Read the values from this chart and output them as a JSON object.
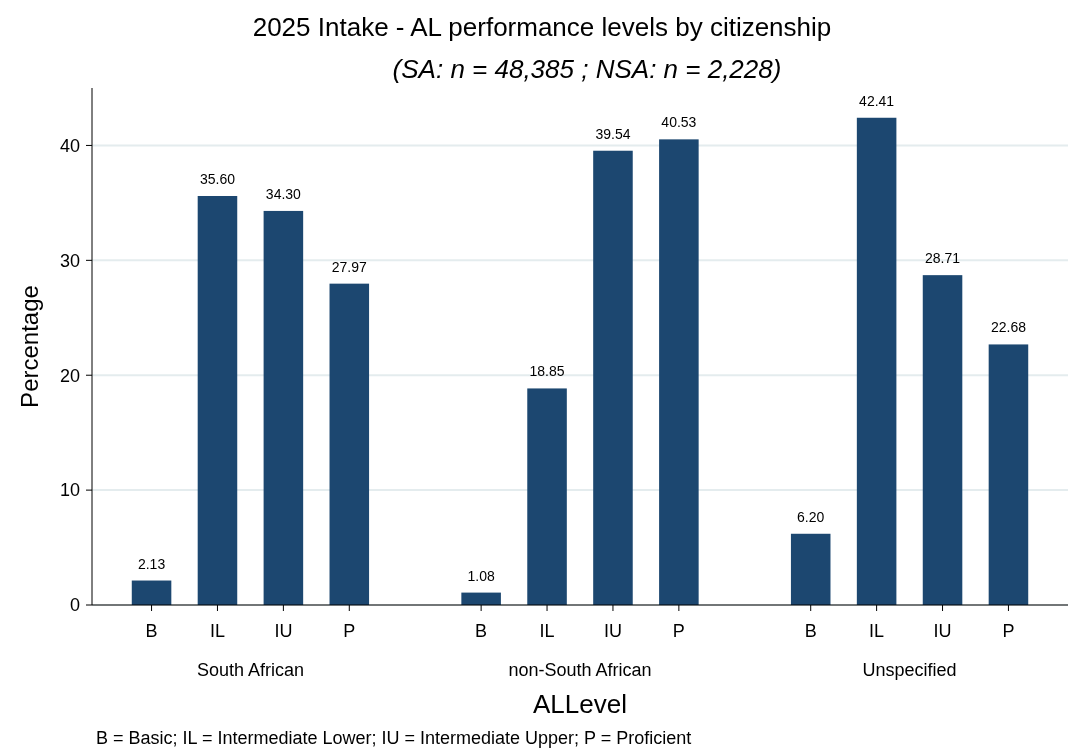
{
  "chart_data": {
    "type": "bar",
    "title": "2025 Intake - AL performance levels by citizenship",
    "subtitle": "(SA: n = 48,385 ; NSA: n = 2,228)",
    "xlabel": "ALLevel",
    "ylabel": "Percentage",
    "categories": [
      "B",
      "IL",
      "IU",
      "P",
      null,
      "B",
      "IL",
      "IU",
      "P",
      null,
      "B",
      "IL",
      "IU",
      "P"
    ],
    "values": [
      2.13,
      35.6,
      34.3,
      27.97,
      null,
      1.08,
      18.85,
      39.54,
      40.53,
      null,
      6.2,
      42.41,
      28.71,
      22.68
    ],
    "value_labels": [
      "2.13",
      "35.60",
      "34.30",
      "27.97",
      null,
      "1.08",
      "18.85",
      "39.54",
      "40.53",
      null,
      "6.20",
      "42.41",
      "28.71",
      "22.68"
    ],
    "color": "#1c4770",
    "ylim": [
      0,
      45
    ],
    "yticks": [
      0,
      10,
      20,
      30,
      40
    ],
    "grid": "y",
    "annotations": [
      "South African",
      "non-South African",
      "Unspecified",
      "B = Basic; IL = Intermediate Lower; IU = Intermediate Upper; P = Proficient"
    ]
  }
}
